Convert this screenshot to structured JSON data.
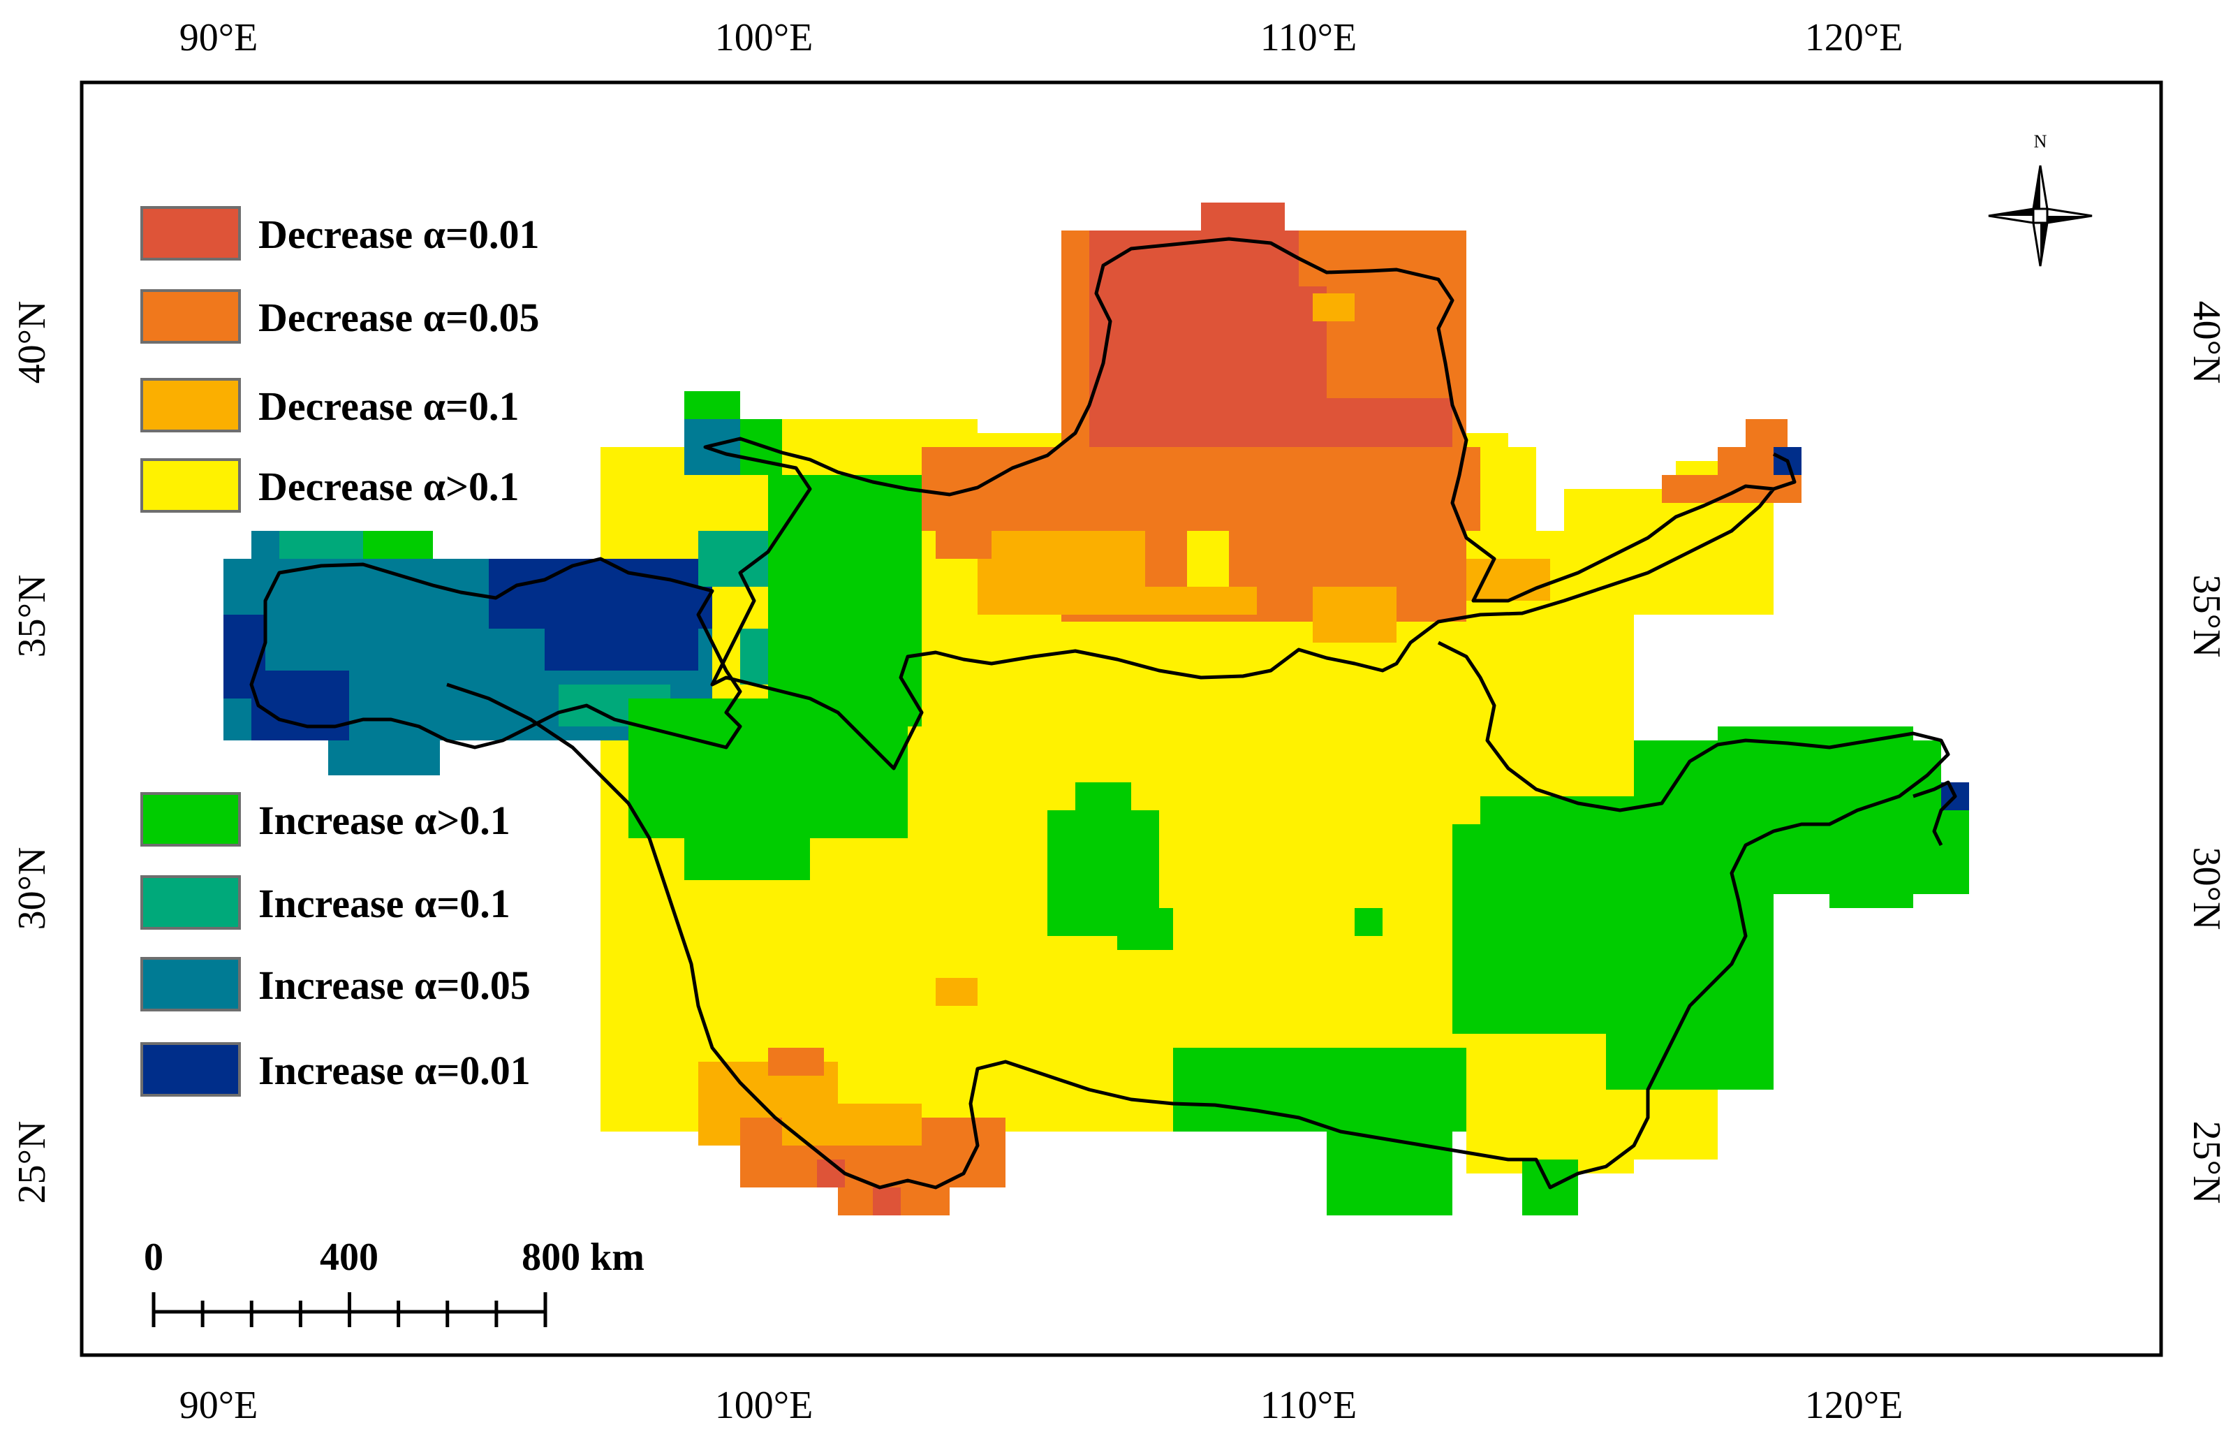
{
  "map": {
    "axes": {
      "top_ticks": [
        "90°E",
        "100°E",
        "110°E",
        "120°E"
      ],
      "bottom_ticks": [
        "90°E",
        "100°E",
        "110°E",
        "120°E"
      ],
      "left_ticks": [
        "40°N",
        "35°N",
        "30°N",
        "25°N"
      ],
      "right_ticks": [
        "40°N",
        "35°N",
        "30°N",
        "25°N"
      ]
    },
    "legend": {
      "decrease": [
        {
          "label": "Decrease α=0.01",
          "color": "#de5438"
        },
        {
          "label": "Decrease α=0.05",
          "color": "#f0781c"
        },
        {
          "label": "Decrease α=0.1",
          "color": "#fbaf00"
        },
        {
          "label": "Decrease α>0.1",
          "color": "#fff200"
        }
      ],
      "increase": [
        {
          "label": "Increase α>0.1",
          "color": "#00cc00"
        },
        {
          "label": "Increase α=0.1",
          "color": "#00a97a"
        },
        {
          "label": "Increase α=0.05",
          "color": "#007b94"
        },
        {
          "label": "Increase α=0.01",
          "color": "#002e8a"
        }
      ]
    },
    "scale_bar": {
      "labels": [
        "0",
        "400",
        "800 km"
      ]
    },
    "north_arrow": {
      "label": "N"
    }
  }
}
